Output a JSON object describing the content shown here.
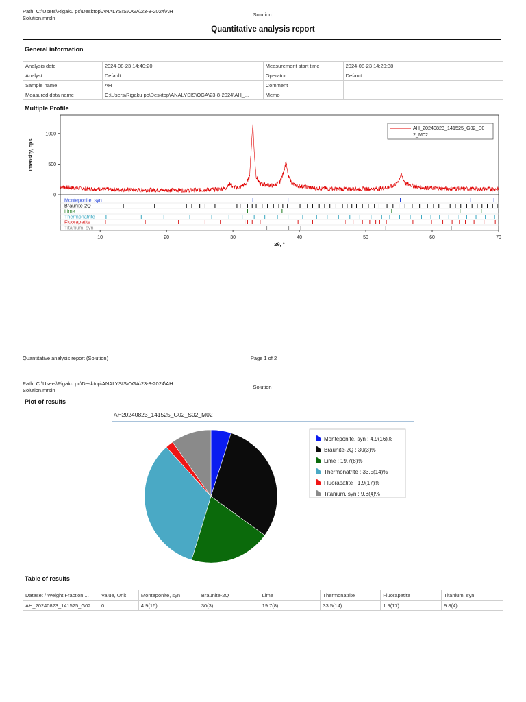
{
  "page1": {
    "path_line1": "Path: C:\\Users\\Rigaku pc\\Desktop\\ANALYSIS\\OGA\\23-8-2024\\AH",
    "path_line2": "Solution.mrsln",
    "header_center": "Solution",
    "title": "Quantitative analysis report",
    "general_info_heading": "General information",
    "info_rows": [
      {
        "label": "Analysis date",
        "value": "2024-08-23 14:40:20",
        "label2": "Measurement start time",
        "value2": "2024-08-23 14:20:38"
      },
      {
        "label": "Analyst",
        "value": "Default",
        "label2": "Operator",
        "value2": "Default"
      },
      {
        "label": "Sample name",
        "value": "AH",
        "label2": "Comment",
        "value2": ""
      },
      {
        "label": "Measured data name",
        "value": "C:\\Users\\Rigaku pc\\Desktop\\ANALYSIS\\OGA\\23-8-2024\\AH_...",
        "label2": "Memo",
        "value2": ""
      }
    ],
    "profile_heading": "Multiple Profile",
    "footer_left": "Quantitative analysis report (Solution)",
    "footer_center": "Page 1 of 2"
  },
  "chart_data": [
    {
      "type": "line",
      "xlabel": "2θ, °",
      "ylabel": "Intensity, cps",
      "xlim": [
        4,
        70
      ],
      "ylim": [
        0,
        1300
      ],
      "x_ticks": [
        10,
        20,
        30,
        40,
        50,
        60,
        70
      ],
      "y_ticks": [
        0,
        500,
        1000
      ],
      "legend_position": "top-right",
      "series": [
        {
          "name": "AH_20240823_141525_G02_S02_M02",
          "color": "#e00000",
          "x": [
            4,
            6,
            8,
            10,
            12,
            14,
            16,
            18,
            20,
            22,
            24,
            26,
            28,
            29,
            29.6,
            30,
            31,
            32,
            32.5,
            33,
            33.2,
            33.5,
            34,
            35,
            36,
            37,
            37.5,
            38,
            38.3,
            39,
            40,
            42,
            44,
            46,
            48,
            50,
            52,
            53,
            54,
            54.8,
            55.3,
            56,
            58,
            60,
            62,
            64,
            66,
            68,
            70
          ],
          "values": [
            130,
            110,
            95,
            90,
            85,
            80,
            80,
            78,
            75,
            75,
            75,
            80,
            90,
            110,
            190,
            120,
            120,
            180,
            300,
            1180,
            700,
            300,
            180,
            160,
            150,
            190,
            320,
            540,
            300,
            170,
            140,
            110,
            100,
            95,
            95,
            95,
            100,
            115,
            140,
            200,
            330,
            180,
            120,
            110,
            100,
            100,
            95,
            95,
            95
          ]
        }
      ],
      "phases": [
        {
          "name": "Monteponite, syn",
          "color": "#1f3fd8",
          "positions": [
            33.0,
            38.3,
            55.2,
            65.8,
            69.3
          ]
        },
        {
          "name": "Braunite-2Q",
          "color": "#111111",
          "positions": [
            13.5,
            18.2,
            23.0,
            23.8,
            25.0,
            25.8,
            27.3,
            28.8,
            30.6,
            31.1,
            32.2,
            32.9,
            33.5,
            34.4,
            35.2,
            36.1,
            36.9,
            37.5,
            38.2,
            40.1,
            41.2,
            42.0,
            43.0,
            43.8,
            44.6,
            45.5,
            46.5,
            47.2,
            47.9,
            48.6,
            49.5,
            50.4,
            51.3,
            52.0,
            53.2,
            54.1,
            55.0,
            55.9,
            57.0,
            58.1,
            59.3,
            60.2,
            61.0,
            61.8,
            62.7,
            63.5,
            64.3,
            65.2,
            66.0,
            66.8,
            67.5,
            68.3,
            69.1,
            69.8
          ]
        },
        {
          "name": "Lime",
          "color": "#1d7a1d",
          "positions": [
            32.2,
            37.4,
            53.9,
            64.2,
            67.4
          ]
        },
        {
          "name": "Thermonatrite",
          "color": "#3aa7c0",
          "positions": [
            10.9,
            16.2,
            19.6,
            23.5,
            26.8,
            29.4,
            31.4,
            33.2,
            34.8,
            36.7,
            38.3,
            40.5,
            42.6,
            44.2,
            45.9,
            47.6,
            49.1,
            50.8,
            52.4,
            53.6,
            55.1,
            56.7,
            58.4,
            59.8,
            61.1,
            62.5,
            63.9,
            65.2,
            66.6,
            68.0,
            69.4
          ]
        },
        {
          "name": "Fluorapatite",
          "color": "#d81b1b",
          "positions": [
            10.8,
            16.8,
            21.8,
            25.8,
            28.1,
            31.8,
            32.2,
            32.9,
            34.1,
            39.8,
            42.0,
            46.9,
            48.1,
            49.5,
            50.6,
            51.5,
            52.1,
            53.1,
            57.1,
            59.9,
            61.6,
            63.0,
            64.1,
            65.0,
            66.3,
            67.8,
            69.5
          ]
        },
        {
          "name": "Titanium, syn",
          "color": "#8c8c8c",
          "positions": [
            35.1,
            38.4,
            40.2,
            53.0,
            62.9
          ]
        }
      ]
    },
    {
      "type": "pie",
      "title": "AH20240823_141525_G02_S02_M02",
      "legend_position": "right",
      "slices": [
        {
          "name": "Monteponite, syn",
          "value": 4.9,
          "label": "Monteponite, syn : 4.9(16)%",
          "color": "#0a1cf0"
        },
        {
          "name": "Braunite-2Q",
          "value": 30,
          "label": "Braunite-2Q : 30(3)%",
          "color": "#0c0c0c"
        },
        {
          "name": "Lime",
          "value": 19.7,
          "label": "Lime : 19.7(8)%",
          "color": "#0b6a0b"
        },
        {
          "name": "Thermonatrite",
          "value": 33.5,
          "label": "Thermonatrite : 33.5(14)%",
          "color": "#4aa9c5"
        },
        {
          "name": "Fluorapatite",
          "value": 1.9,
          "label": "Fluorapatite : 1.9(17)%",
          "color": "#f01515"
        },
        {
          "name": "Titanium, syn",
          "value": 9.8,
          "label": "Titanium, syn : 9.8(4)%",
          "color": "#8a8a8a"
        }
      ]
    }
  ],
  "page2": {
    "path_line1": "Path: C:\\Users\\Rigaku pc\\Desktop\\ANALYSIS\\OGA\\23-8-2024\\AH",
    "path_line2": "Solution.mrsln",
    "header_center": "Solution",
    "plot_heading": "Plot of results",
    "table_heading": "Table of results",
    "table_headers": [
      "Dataset / Weight Fraction,...",
      "Value, Unit",
      "Monteponite, syn",
      "Braunite-2Q",
      "Lime",
      "Thermonatrite",
      "Fluorapatite",
      "Titanium, syn"
    ],
    "table_row": [
      "AH_20240823_141525_G02...",
      "0",
      "4.9(16)",
      "30(3)",
      "19.7(8)",
      "33.5(14)",
      "1.9(17)",
      "9.8(4)"
    ]
  }
}
